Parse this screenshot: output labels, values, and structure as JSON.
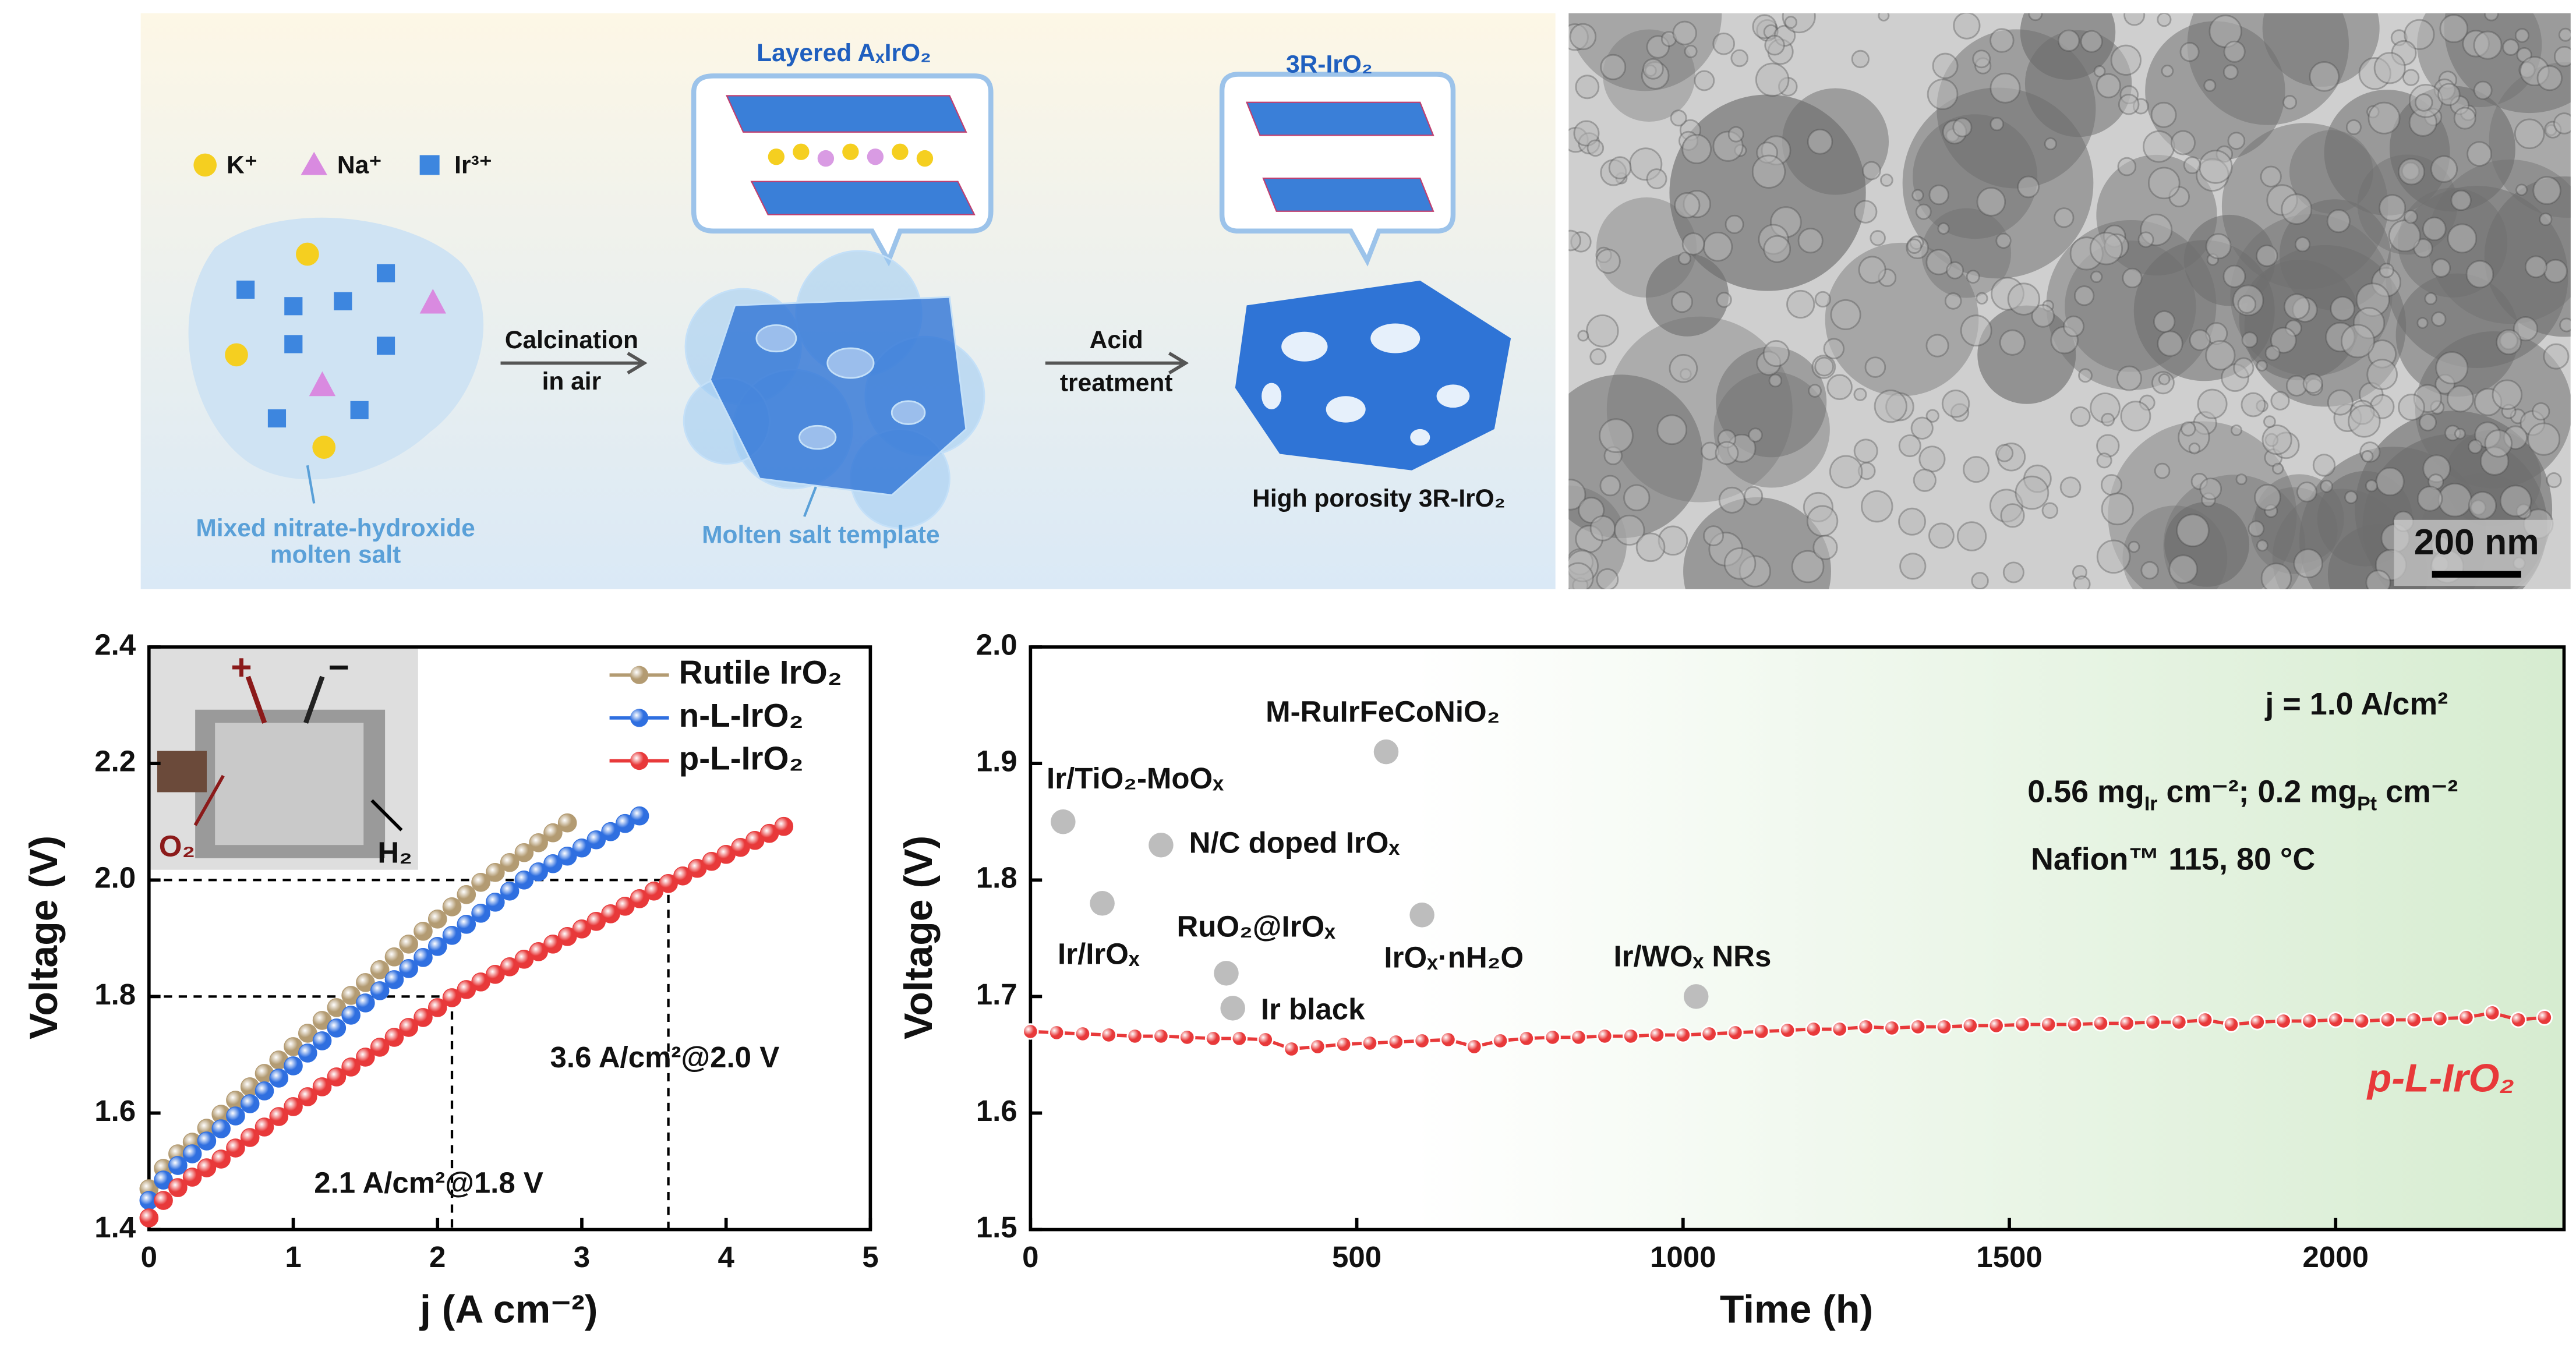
{
  "schematic": {
    "legend": [
      "K⁺",
      "Na⁺",
      "Ir³⁺"
    ],
    "step1": [
      "Calcination",
      "in air"
    ],
    "step2": [
      "Acid",
      "treatment"
    ],
    "bubble1": "Layered AₓIrO₂",
    "bubble2": "3R-IrO₂",
    "salt_label": [
      "Mixed nitrate-hydroxide",
      "molten salt"
    ],
    "template_label": "Molten salt template",
    "product_label": "High porosity 3R-IrO₂"
  },
  "tem": {
    "scale_bar": "200 nm"
  },
  "chart_data": [
    {
      "type": "line",
      "xlabel": "j (A cm⁻²)",
      "ylabel": "Voltage (V)",
      "xlim": [
        0,
        5
      ],
      "ylim": [
        1.4,
        2.4
      ],
      "xticks": [
        0,
        1,
        2,
        3,
        4,
        5
      ],
      "yticks": [
        1.4,
        1.6,
        1.8,
        {
          "value": 2,
          "label": "2.0"
        },
        2.2,
        2.4
      ],
      "legend": "upper right",
      "inset_labels": [
        "+",
        "−",
        "O₂",
        "H₂"
      ],
      "series": [
        {
          "name": "Rutile IrO₂",
          "color": "#b39b72",
          "x": [
            0,
            0.1,
            0.2,
            0.3,
            0.4,
            0.5,
            0.6,
            0.7,
            0.8,
            0.9,
            1.0,
            1.1,
            1.2,
            1.3,
            1.4,
            1.5,
            1.6,
            1.7,
            1.8,
            1.9,
            2.0,
            2.1,
            2.2,
            2.3,
            2.4,
            2.5,
            2.6,
            2.7,
            2.8,
            2.9
          ],
          "values": [
            1.47,
            1.505,
            1.53,
            1.55,
            1.574,
            1.598,
            1.622,
            1.645,
            1.668,
            1.691,
            1.714,
            1.737,
            1.759,
            1.781,
            1.802,
            1.824,
            1.846,
            1.868,
            1.89,
            1.912,
            1.933,
            1.954,
            1.975,
            1.996,
            2.013,
            2.03,
            2.047,
            2.064,
            2.081,
            2.098
          ]
        },
        {
          "name": "n-L-IrO₂",
          "color": "#2f6fe0",
          "x": [
            0,
            0.1,
            0.2,
            0.3,
            0.4,
            0.5,
            0.6,
            0.7,
            0.8,
            0.9,
            1.0,
            1.1,
            1.2,
            1.3,
            1.4,
            1.5,
            1.6,
            1.7,
            1.8,
            1.9,
            2.0,
            2.1,
            2.2,
            2.3,
            2.4,
            2.5,
            2.6,
            2.7,
            2.8,
            2.9,
            3.0,
            3.1,
            3.2,
            3.3,
            3.4
          ],
          "values": [
            1.45,
            1.485,
            1.51,
            1.53,
            1.552,
            1.573,
            1.595,
            1.616,
            1.638,
            1.66,
            1.681,
            1.703,
            1.724,
            1.746,
            1.768,
            1.789,
            1.81,
            1.829,
            1.848,
            1.867,
            1.886,
            1.905,
            1.924,
            1.943,
            1.962,
            1.981,
            2.0,
            2.014,
            2.028,
            2.041,
            2.055,
            2.069,
            2.083,
            2.097,
            2.11
          ]
        },
        {
          "name": "p-L-IrO₂",
          "color": "#e8393a",
          "x": [
            0,
            0.1,
            0.2,
            0.3,
            0.4,
            0.5,
            0.6,
            0.7,
            0.8,
            0.9,
            1.0,
            1.1,
            1.2,
            1.3,
            1.4,
            1.5,
            1.6,
            1.7,
            1.8,
            1.9,
            2.0,
            2.1,
            2.2,
            2.3,
            2.4,
            2.5,
            2.6,
            2.7,
            2.8,
            2.9,
            3.0,
            3.1,
            3.2,
            3.3,
            3.4,
            3.5,
            3.6,
            3.7,
            3.8,
            3.9,
            4.0,
            4.1,
            4.2,
            4.3,
            4.4
          ],
          "values": [
            1.42,
            1.45,
            1.472,
            1.49,
            1.506,
            1.521,
            1.54,
            1.558,
            1.576,
            1.594,
            1.611,
            1.628,
            1.645,
            1.662,
            1.679,
            1.696,
            1.713,
            1.73,
            1.747,
            1.764,
            1.781,
            1.798,
            1.812,
            1.825,
            1.838,
            1.851,
            1.864,
            1.877,
            1.89,
            1.903,
            1.916,
            1.929,
            1.942,
            1.955,
            1.968,
            1.981,
            1.994,
            2.007,
            2.02,
            2.032,
            2.044,
            2.056,
            2.068,
            2.08,
            2.092
          ]
        }
      ],
      "guides": [
        {
          "x": 2.1,
          "y": 1.8
        },
        {
          "x": 3.6,
          "y": 2.0
        }
      ],
      "annotations": [
        "2.1 A/cm²@1.8 V",
        "3.6 A/cm²@2.0 V"
      ]
    },
    {
      "type": "line",
      "xlabel": "Time (h)",
      "ylabel": "Voltage (V)",
      "xlim": [
        0,
        2350
      ],
      "ylim": [
        1.5,
        2.0
      ],
      "xticks": [
        0,
        500,
        1000,
        1500,
        2000
      ],
      "yticks": [
        1.5,
        1.6,
        1.7,
        1.8,
        1.9,
        {
          "value": 2,
          "label": "2.0"
        }
      ],
      "legend": "lower right",
      "shade_color": "#d6ecd0",
      "connect": true,
      "series": [
        {
          "name": "p-L-IrO₂",
          "color": "#e8393a",
          "x": [
            0,
            40,
            80,
            120,
            160,
            200,
            240,
            280,
            320,
            360,
            400,
            440,
            480,
            520,
            560,
            600,
            640,
            680,
            720,
            760,
            800,
            840,
            880,
            920,
            960,
            1000,
            1040,
            1080,
            1120,
            1160,
            1200,
            1240,
            1280,
            1320,
            1360,
            1400,
            1440,
            1480,
            1520,
            1560,
            1600,
            1640,
            1680,
            1720,
            1760,
            1800,
            1840,
            1880,
            1920,
            1960,
            2000,
            2040,
            2080,
            2120,
            2160,
            2200,
            2240,
            2280,
            2320
          ],
          "values": [
            1.67,
            1.669,
            1.668,
            1.667,
            1.666,
            1.666,
            1.665,
            1.664,
            1.664,
            1.663,
            1.655,
            1.657,
            1.659,
            1.66,
            1.661,
            1.662,
            1.663,
            1.657,
            1.662,
            1.664,
            1.665,
            1.665,
            1.666,
            1.666,
            1.667,
            1.667,
            1.668,
            1.669,
            1.67,
            1.671,
            1.672,
            1.672,
            1.674,
            1.673,
            1.674,
            1.674,
            1.675,
            1.675,
            1.676,
            1.676,
            1.676,
            1.677,
            1.677,
            1.678,
            1.678,
            1.68,
            1.676,
            1.678,
            1.679,
            1.679,
            1.68,
            1.679,
            1.68,
            1.68,
            1.681,
            1.682,
            1.686,
            1.68,
            1.682
          ]
        }
      ],
      "reference_points": [
        {
          "label": "Ir/TiO₂-MoOₓ",
          "x": 50,
          "y": 1.85
        },
        {
          "label": "Ir/IrOₓ",
          "x": 110,
          "y": 1.78
        },
        {
          "label": "N/C doped IrOₓ",
          "x": 200,
          "y": 1.83
        },
        {
          "label": "RuO₂@IrOₓ",
          "x": 300,
          "y": 1.72
        },
        {
          "label": "Ir black",
          "x": 310,
          "y": 1.69
        },
        {
          "label": "M-RuIrFeCoNiO₂",
          "x": 545,
          "y": 1.91
        },
        {
          "label": "IrOₓ·nH₂O",
          "x": 600,
          "y": 1.77
        },
        {
          "label": "Ir/WOₓ NRs",
          "x": 1020,
          "y": 1.7
        }
      ],
      "notes": [
        [
          "j = 1.0 A/cm²"
        ],
        [
          "0.56 mg",
          "Ir",
          " cm⁻²; 0.2 mg",
          "Pt",
          " cm⁻²"
        ],
        [
          "Nafion™ 115, 80 °C"
        ]
      ]
    }
  ]
}
